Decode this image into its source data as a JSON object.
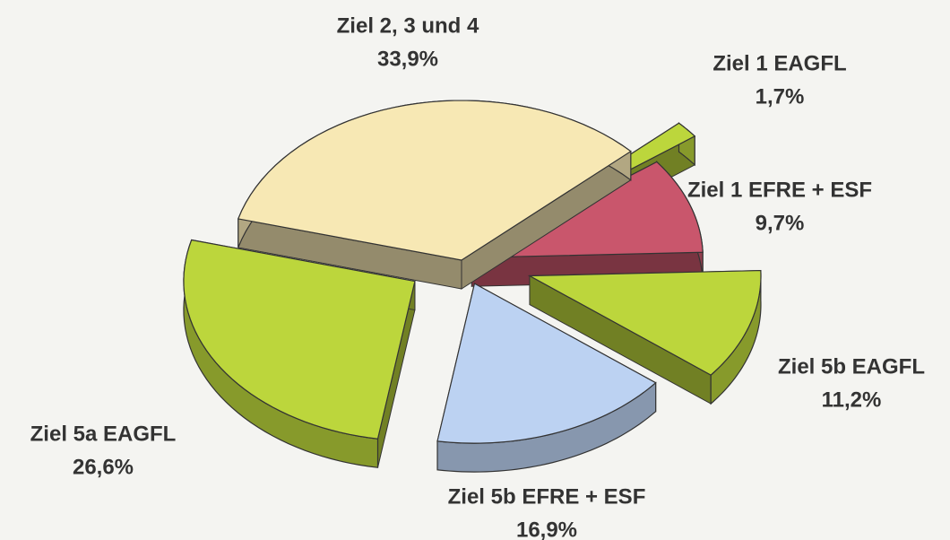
{
  "chart_data": {
    "type": "pie",
    "categories": [
      "Ziel 2, 3 und 4",
      "Ziel 1 EAGFL",
      "Ziel 1 EFRE + ESF",
      "Ziel 5b EAGFL",
      "Ziel 5b EFRE + ESF",
      "Ziel 5a EAGFL"
    ],
    "values": [
      33.9,
      1.7,
      9.7,
      11.2,
      16.9,
      26.6
    ],
    "value_labels": [
      "33,9%",
      "1,7%",
      "9,7%",
      "11,2%",
      "16,9%",
      "26,6%"
    ],
    "colors": [
      "#f7e8b4",
      "#bcd63c",
      "#c9566c",
      "#bcd63c",
      "#bcd2f2",
      "#bcd63c"
    ]
  }
}
